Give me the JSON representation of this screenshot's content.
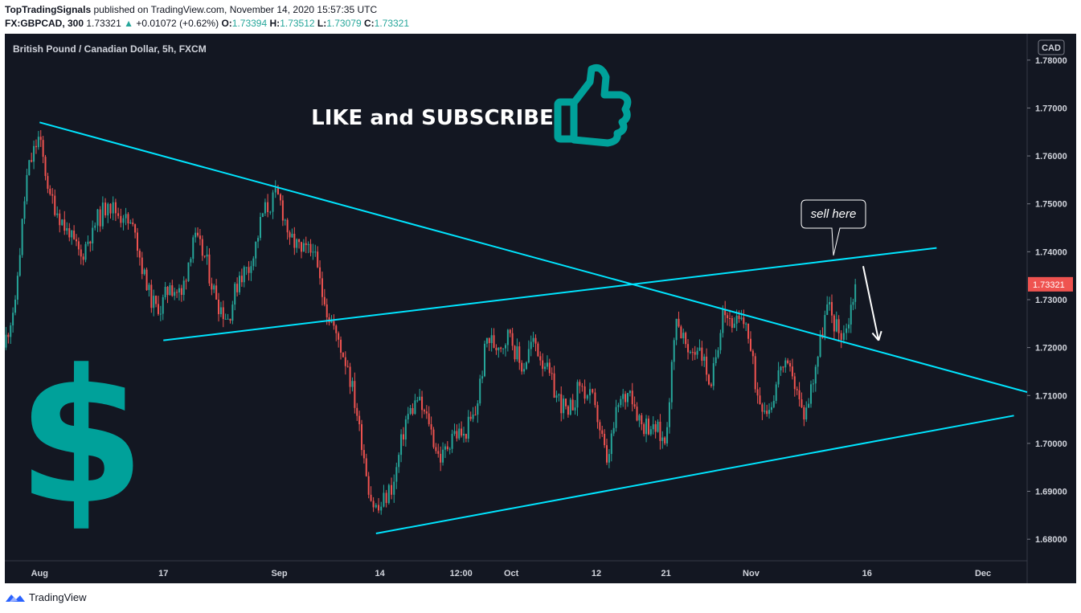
{
  "header": {
    "author": "TopTradingSignals",
    "published_text": "published on TradingView.com, November 14, 2020 15:57:35 UTC",
    "symbol": "FX:GBPCAD, 300",
    "last": "1.73321",
    "change_arrow": "▲",
    "change": "+0.01072 (+0.62%)",
    "o_label": "O:",
    "o_value": "1.73394",
    "h_label": "H:",
    "h_value": "1.73512",
    "l_label": "L:",
    "l_value": "1.73079",
    "c_label": "C:",
    "c_value": "1.73321"
  },
  "footer": {
    "brand": "TradingView"
  },
  "annotations": {
    "like_subscribe": "LIKE and SUBSCRIBE",
    "sell_here": "sell here"
  },
  "colors": {
    "background": "#131722",
    "up_candle": "#26a69a",
    "down_candle": "#ef5350",
    "trendline": "#00e5ff",
    "icon_teal": "#00a19a",
    "price_tag": "#ef5350"
  },
  "icons": [
    "thumbs-up-icon",
    "dollar-sign-icon",
    "tradingview-logo-icon"
  ],
  "chart_data": {
    "type": "candlestick",
    "title": "British Pound / Canadian Dollar, 5h, FXCM",
    "currency_label": "CAD",
    "ylim": [
      1.6755,
      1.7855
    ],
    "yticks": [
      1.78,
      1.77,
      1.76,
      1.75,
      1.74,
      1.73,
      1.72,
      1.71,
      1.7,
      1.69,
      1.68
    ],
    "ytick_labels": [
      "1.78000",
      "1.77000",
      "1.76000",
      "1.75000",
      "1.74000",
      "1.73000",
      "1.72000",
      "1.71000",
      "1.70000",
      "1.69000",
      "1.68000"
    ],
    "last_price": 1.73321,
    "last_price_label": "1.73321",
    "xlim": [
      "2020-07-27T12:00",
      "2020-12-06T17:00"
    ],
    "xticks": [
      {
        "label": "Aug",
        "x": "2020-08-01T00:00"
      },
      {
        "label": "17",
        "x": "2020-08-17T00:00"
      },
      {
        "label": "Sep",
        "x": "2020-09-01T00:00"
      },
      {
        "label": "14",
        "x": "2020-09-14T00:00"
      },
      {
        "label": "12:00",
        "x": "2020-09-24T12:00"
      },
      {
        "label": "Oct",
        "x": "2020-10-01T00:00"
      },
      {
        "label": "12",
        "x": "2020-10-12T00:00"
      },
      {
        "label": "21",
        "x": "2020-10-21T00:00"
      },
      {
        "label": "Nov",
        "x": "2020-11-01T00:00"
      },
      {
        "label": "16",
        "x": "2020-11-16T00:00"
      },
      {
        "label": "Dec",
        "x": "2020-12-01T00:00"
      }
    ],
    "anchors": [
      [
        "2020-07-27T12:00",
        1.72
      ],
      [
        "2020-07-29T00:00",
        1.73
      ],
      [
        "2020-07-30T12:00",
        1.756
      ],
      [
        "2020-08-01T00:00",
        1.764
      ],
      [
        "2020-08-02T12:00",
        1.752
      ],
      [
        "2020-08-05T00:00",
        1.743
      ],
      [
        "2020-08-06T12:00",
        1.739
      ],
      [
        "2020-08-08T00:00",
        1.745
      ],
      [
        "2020-08-10T00:00",
        1.75
      ],
      [
        "2020-08-12T00:00",
        1.747
      ],
      [
        "2020-08-13T12:00",
        1.744
      ],
      [
        "2020-08-15T00:00",
        1.732
      ],
      [
        "2020-08-16T12:00",
        1.727
      ],
      [
        "2020-08-18T00:00",
        1.733
      ],
      [
        "2020-08-19T12:00",
        1.731
      ],
      [
        "2020-08-21T00:00",
        1.743
      ],
      [
        "2020-08-22T12:00",
        1.739
      ],
      [
        "2020-08-24T00:00",
        1.73
      ],
      [
        "2020-08-25T12:00",
        1.726
      ],
      [
        "2020-08-27T00:00",
        1.735
      ],
      [
        "2020-08-28T12:00",
        1.737
      ],
      [
        "2020-08-30T00:00",
        1.748
      ],
      [
        "2020-09-01T00:00",
        1.752
      ],
      [
        "2020-09-02T12:00",
        1.743
      ],
      [
        "2020-09-04T00:00",
        1.74
      ],
      [
        "2020-09-05T12:00",
        1.74
      ],
      [
        "2020-09-07T00:00",
        1.729
      ],
      [
        "2020-09-08T12:00",
        1.723
      ],
      [
        "2020-09-10T00:00",
        1.716
      ],
      [
        "2020-09-11T12:00",
        1.704
      ],
      [
        "2020-09-13T00:00",
        1.688
      ],
      [
        "2020-09-14T00:00",
        1.686
      ],
      [
        "2020-09-16T00:00",
        1.692
      ],
      [
        "2020-09-17T12:00",
        1.705
      ],
      [
        "2020-09-19T00:00",
        1.709
      ],
      [
        "2020-09-20T12:00",
        1.704
      ],
      [
        "2020-09-22T00:00",
        1.696
      ],
      [
        "2020-09-23T12:00",
        1.702
      ],
      [
        "2020-09-25T00:00",
        1.702
      ],
      [
        "2020-09-26T12:00",
        1.706
      ],
      [
        "2020-09-28T00:00",
        1.722
      ],
      [
        "2020-09-29T12:00",
        1.72
      ],
      [
        "2020-10-01T00:00",
        1.723
      ],
      [
        "2020-10-02T12:00",
        1.715
      ],
      [
        "2020-10-04T00:00",
        1.722
      ],
      [
        "2020-10-05T12:00",
        1.716
      ],
      [
        "2020-10-07T00:00",
        1.71
      ],
      [
        "2020-10-08T12:00",
        1.706
      ],
      [
        "2020-10-10T00:00",
        1.712
      ],
      [
        "2020-10-12T00:00",
        1.708
      ],
      [
        "2020-10-13T12:00",
        1.696
      ],
      [
        "2020-10-15T00:00",
        1.708
      ],
      [
        "2020-10-16T12:00",
        1.711
      ],
      [
        "2020-10-18T00:00",
        1.704
      ],
      [
        "2020-10-19T12:00",
        1.704
      ],
      [
        "2020-10-21T00:00",
        1.7
      ],
      [
        "2020-10-22T12:00",
        1.726
      ],
      [
        "2020-10-24T00:00",
        1.719
      ],
      [
        "2020-10-25T12:00",
        1.72
      ],
      [
        "2020-10-27T00:00",
        1.712
      ],
      [
        "2020-10-28T12:00",
        1.728
      ],
      [
        "2020-10-30T00:00",
        1.725
      ],
      [
        "2020-10-31T12:00",
        1.725
      ],
      [
        "2020-11-02T00:00",
        1.71
      ],
      [
        "2020-11-03T12:00",
        1.707
      ],
      [
        "2020-11-05T00:00",
        1.716
      ],
      [
        "2020-11-06T12:00",
        1.714
      ],
      [
        "2020-11-08T00:00",
        1.705
      ],
      [
        "2020-11-09T12:00",
        1.716
      ],
      [
        "2020-11-11T00:00",
        1.729
      ],
      [
        "2020-11-12T12:00",
        1.723
      ],
      [
        "2020-11-13T12:00",
        1.724
      ],
      [
        "2020-11-14T15:00",
        1.73321
      ]
    ],
    "trendlines": [
      {
        "name": "descending-resistance",
        "from": [
          "2020-08-01T00:00",
          1.767
        ],
        "to": [
          "2020-12-06T17:00",
          1.7107
        ]
      },
      {
        "name": "rising-channel-top",
        "from": [
          "2020-08-17T00:00",
          1.7215
        ],
        "to": [
          "2020-11-25T00:00",
          1.7408
        ]
      },
      {
        "name": "rising-channel-bottom",
        "from": [
          "2020-09-13T12:00",
          1.6812
        ],
        "to": [
          "2020-12-05T00:00",
          1.7058
        ]
      }
    ],
    "projection_arrow": {
      "from": [
        "2020-11-15T12:00",
        1.737
      ],
      "to": [
        "2020-11-17T12:00",
        1.7215
      ]
    },
    "callout_point": [
      "2020-11-15T12:00",
      1.7375
    ],
    "grid": false,
    "legend": "none"
  }
}
